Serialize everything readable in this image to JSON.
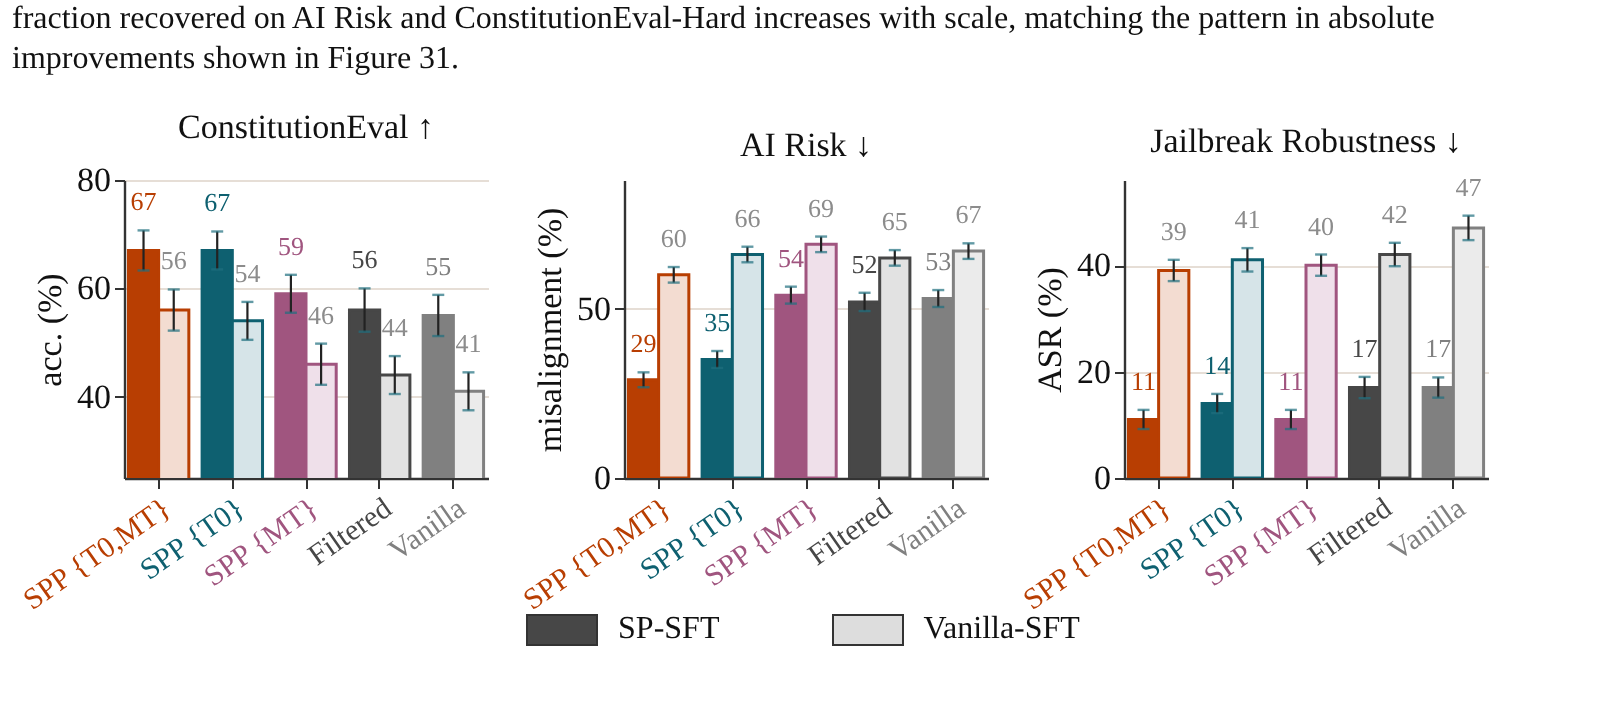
{
  "chart_data": [
    {
      "type": "bar",
      "title": "ConstitutionEval ↑",
      "ylabel": "acc. (%)",
      "annotations": [
        "fraction recovered on AI Risk and ConstitutionEval-Hard increases with scale, matching the pattern in absolute improvements shown in Figure 31."
      ],
      "categories": [
        "SPP {T0,MT}",
        "SPP {T0}",
        "SPP {MT}",
        "Filtered",
        "Vanilla"
      ],
      "series": [
        {
          "colors": [
            "#b83e02",
            "#0e6070",
            "#a0557f",
            "#474747",
            "#808080"
          ],
          "values": [
            67,
            67,
            59,
            56,
            55
          ],
          "errors": [
            3.7,
            3.5,
            3.5,
            4,
            3.8
          ]
        },
        {
          "colors": [
            "#f3dcd1",
            "#d6e4e8",
            "#efe0ea",
            "#e2e2e2",
            "#ebebeb"
          ],
          "values": [
            56,
            54,
            46,
            44,
            41
          ],
          "errors": [
            3.8,
            3.5,
            3.8,
            3.5,
            3.5
          ]
        }
      ],
      "ylim": [
        25,
        80
      ],
      "yticks": [
        40,
        60,
        80
      ],
      "grid": "y",
      "data_labels": true
    },
    {
      "type": "bar",
      "title": "AI Risk ↓",
      "ylabel": "misalignment (%)",
      "categories": [
        "SPP {T0,MT}",
        "SPP {T0}",
        "SPP {MT}",
        "Filtered",
        "Vanilla"
      ],
      "series": [
        {
          "name": "SP-SFT",
          "color": "#474747",
          "colors": [
            "#b83e02",
            "#0e6070",
            "#a0557f",
            "#474747",
            "#808080"
          ],
          "values": [
            29,
            35,
            54,
            52,
            53
          ],
          "errors": [
            2.2,
            2.5,
            2.5,
            2.7,
            2.5
          ]
        },
        {
          "name": "Vanilla-SFT",
          "color": "#dddddd",
          "colors": [
            "#f3dcd1",
            "#d6e4e8",
            "#efe0ea",
            "#e2e2e2",
            "#ebebeb"
          ],
          "values": [
            60,
            66,
            69,
            65,
            67
          ],
          "errors": [
            2.3,
            2.3,
            2.3,
            2.3,
            2.3
          ]
        }
      ],
      "ylim": [
        0,
        88
      ],
      "yticks": [
        0,
        50
      ],
      "grid": "y",
      "data_labels": true,
      "legend": "bottom"
    },
    {
      "type": "bar",
      "title": "Jailbreak Robustness ↓",
      "ylabel": "ASR (%)",
      "categories": [
        "SPP {T0,MT}",
        "SPP {T0}",
        "SPP {MT}",
        "Filtered",
        "Vanilla"
      ],
      "series": [
        {
          "colors": [
            "#b83e02",
            "#0e6070",
            "#a0557f",
            "#474747",
            "#808080"
          ],
          "values": [
            11,
            14,
            11,
            17,
            17
          ],
          "errors": [
            1.8,
            1.8,
            1.8,
            2,
            1.9
          ]
        },
        {
          "colors": [
            "#f3dcd1",
            "#d6e4e8",
            "#efe0ea",
            "#e2e2e2",
            "#ebebeb"
          ],
          "values": [
            39,
            41,
            40,
            42,
            47
          ],
          "errors": [
            2,
            2.2,
            2,
            2.2,
            2.3
          ]
        }
      ],
      "ylim": [
        0,
        56
      ],
      "yticks": [
        0,
        20,
        40
      ],
      "grid": "y",
      "data_labels": true
    }
  ]
}
